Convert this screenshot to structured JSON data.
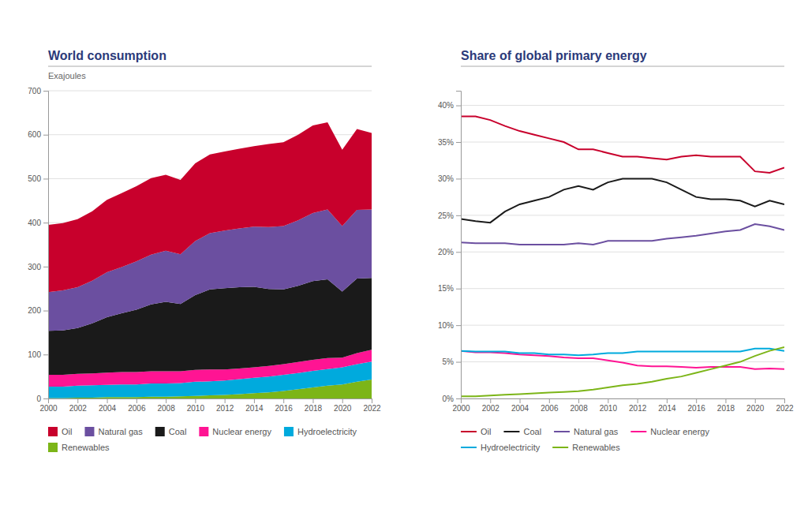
{
  "chart_data": [
    {
      "type": "area",
      "title": "World consumption",
      "y_label": "Exajoules",
      "stacked": true,
      "grid": true,
      "legend": "bottom",
      "x": [
        2000,
        2001,
        2002,
        2003,
        2004,
        2005,
        2006,
        2007,
        2008,
        2009,
        2010,
        2011,
        2012,
        2013,
        2014,
        2015,
        2016,
        2017,
        2018,
        2019,
        2020,
        2021,
        2022
      ],
      "xlim": [
        2000,
        2022
      ],
      "xticks": [
        2000,
        2002,
        2004,
        2006,
        2008,
        2010,
        2012,
        2014,
        2016,
        2018,
        2020,
        2022
      ],
      "ylim": [
        0,
        700
      ],
      "yticks": [
        0,
        100,
        200,
        300,
        400,
        500,
        600,
        700
      ],
      "series": [
        {
          "name": "Renewables",
          "color": "#7CB518",
          "values": [
            1,
            1,
            2,
            2,
            3,
            3,
            3,
            4,
            4,
            5,
            6,
            7,
            8,
            10,
            12,
            14,
            17,
            21,
            25,
            29,
            32,
            38,
            43
          ]
        },
        {
          "name": "Hydroelectricity",
          "color": "#00AADD",
          "values": [
            26,
            26,
            27,
            28,
            28,
            29,
            29,
            30,
            30,
            30,
            32,
            32,
            33,
            34,
            35,
            36,
            37,
            37,
            38,
            38,
            39,
            40,
            41
          ]
        },
        {
          "name": "Nuclear energy",
          "color": "#FF1493",
          "values": [
            27,
            27,
            27,
            27,
            28,
            28,
            28,
            28,
            28,
            27,
            27,
            27,
            25,
            24,
            24,
            24,
            24,
            25,
            25,
            25,
            22,
            25,
            27
          ]
        },
        {
          "name": "Coal",
          "color": "#1A1A1A",
          "values": [
            100,
            101,
            104,
            114,
            126,
            134,
            142,
            152,
            158,
            153,
            170,
            182,
            185,
            185,
            183,
            175,
            170,
            173,
            179,
            179,
            150,
            170,
            163
          ]
        },
        {
          "name": "Natural gas",
          "color": "#6B4FA0",
          "values": [
            88,
            91,
            93,
            97,
            102,
            105,
            110,
            113,
            116,
            113,
            123,
            128,
            131,
            134,
            137,
            141,
            144,
            149,
            155,
            159,
            149,
            156,
            156
          ]
        },
        {
          "name": "Oil",
          "color": "#C8002C",
          "values": [
            153,
            153,
            155,
            158,
            165,
            168,
            171,
            174,
            173,
            169,
            177,
            179,
            180,
            181,
            183,
            189,
            191,
            195,
            199,
            198,
            174,
            184,
            174
          ]
        }
      ]
    },
    {
      "type": "line",
      "title": "Share of global primary energy",
      "grid": true,
      "legend": "bottom",
      "x": [
        2000,
        2001,
        2002,
        2003,
        2004,
        2005,
        2006,
        2007,
        2008,
        2009,
        2010,
        2011,
        2012,
        2013,
        2014,
        2015,
        2016,
        2017,
        2018,
        2019,
        2020,
        2021,
        2022
      ],
      "xlim": [
        2000,
        2022
      ],
      "xticks": [
        2000,
        2002,
        2004,
        2006,
        2008,
        2010,
        2012,
        2014,
        2016,
        2018,
        2020,
        2022
      ],
      "ylim": [
        0,
        42
      ],
      "yticks": [
        {
          "value": 0,
          "label": "0%"
        },
        {
          "value": 5,
          "label": "5%"
        },
        {
          "value": 10,
          "label": "10%"
        },
        {
          "value": 15,
          "label": "15%"
        },
        {
          "value": 20,
          "label": "20%"
        },
        {
          "value": 25,
          "label": "25%"
        },
        {
          "value": 30,
          "label": "30%"
        },
        {
          "value": 35,
          "label": "35%"
        },
        {
          "value": 40,
          "label": "40%"
        }
      ],
      "series": [
        {
          "name": "Oil",
          "color": "#C8002C",
          "values": [
            38.5,
            38.5,
            38.0,
            37.2,
            36.5,
            36.0,
            35.5,
            35.0,
            34.0,
            34.0,
            33.5,
            33.0,
            33.0,
            32.8,
            32.6,
            33.0,
            33.2,
            33.0,
            33.0,
            33.0,
            31.0,
            30.8,
            31.5
          ]
        },
        {
          "name": "Coal",
          "color": "#1A1A1A",
          "values": [
            24.5,
            24.2,
            24.0,
            25.5,
            26.5,
            27.0,
            27.5,
            28.5,
            29.0,
            28.5,
            29.5,
            30.0,
            30.0,
            30.0,
            29.5,
            28.5,
            27.5,
            27.2,
            27.2,
            27.0,
            26.2,
            27.0,
            26.5
          ]
        },
        {
          "name": "Natural gas",
          "color": "#6B4FA0",
          "values": [
            21.3,
            21.2,
            21.2,
            21.2,
            21.0,
            21.0,
            21.0,
            21.0,
            21.2,
            21.0,
            21.5,
            21.5,
            21.5,
            21.5,
            21.8,
            22.0,
            22.2,
            22.5,
            22.8,
            23.0,
            23.8,
            23.5,
            23.0
          ]
        },
        {
          "name": "Nuclear energy",
          "color": "#FF1493",
          "values": [
            6.5,
            6.3,
            6.3,
            6.2,
            6.0,
            5.9,
            5.8,
            5.6,
            5.5,
            5.5,
            5.2,
            4.9,
            4.5,
            4.4,
            4.4,
            4.3,
            4.2,
            4.3,
            4.3,
            4.3,
            4.0,
            4.1,
            4.0
          ]
        },
        {
          "name": "Hydroelectricity",
          "color": "#00AADD",
          "values": [
            6.5,
            6.4,
            6.4,
            6.4,
            6.2,
            6.2,
            6.0,
            6.0,
            5.9,
            6.0,
            6.2,
            6.2,
            6.4,
            6.4,
            6.4,
            6.4,
            6.4,
            6.4,
            6.4,
            6.4,
            6.8,
            6.8,
            6.5
          ]
        },
        {
          "name": "Renewables",
          "color": "#7CB518",
          "values": [
            0.3,
            0.3,
            0.4,
            0.5,
            0.6,
            0.7,
            0.8,
            0.9,
            1.0,
            1.2,
            1.5,
            1.8,
            2.0,
            2.3,
            2.7,
            3.0,
            3.5,
            4.0,
            4.5,
            5.0,
            5.8,
            6.5,
            7.0
          ]
        }
      ]
    }
  ]
}
